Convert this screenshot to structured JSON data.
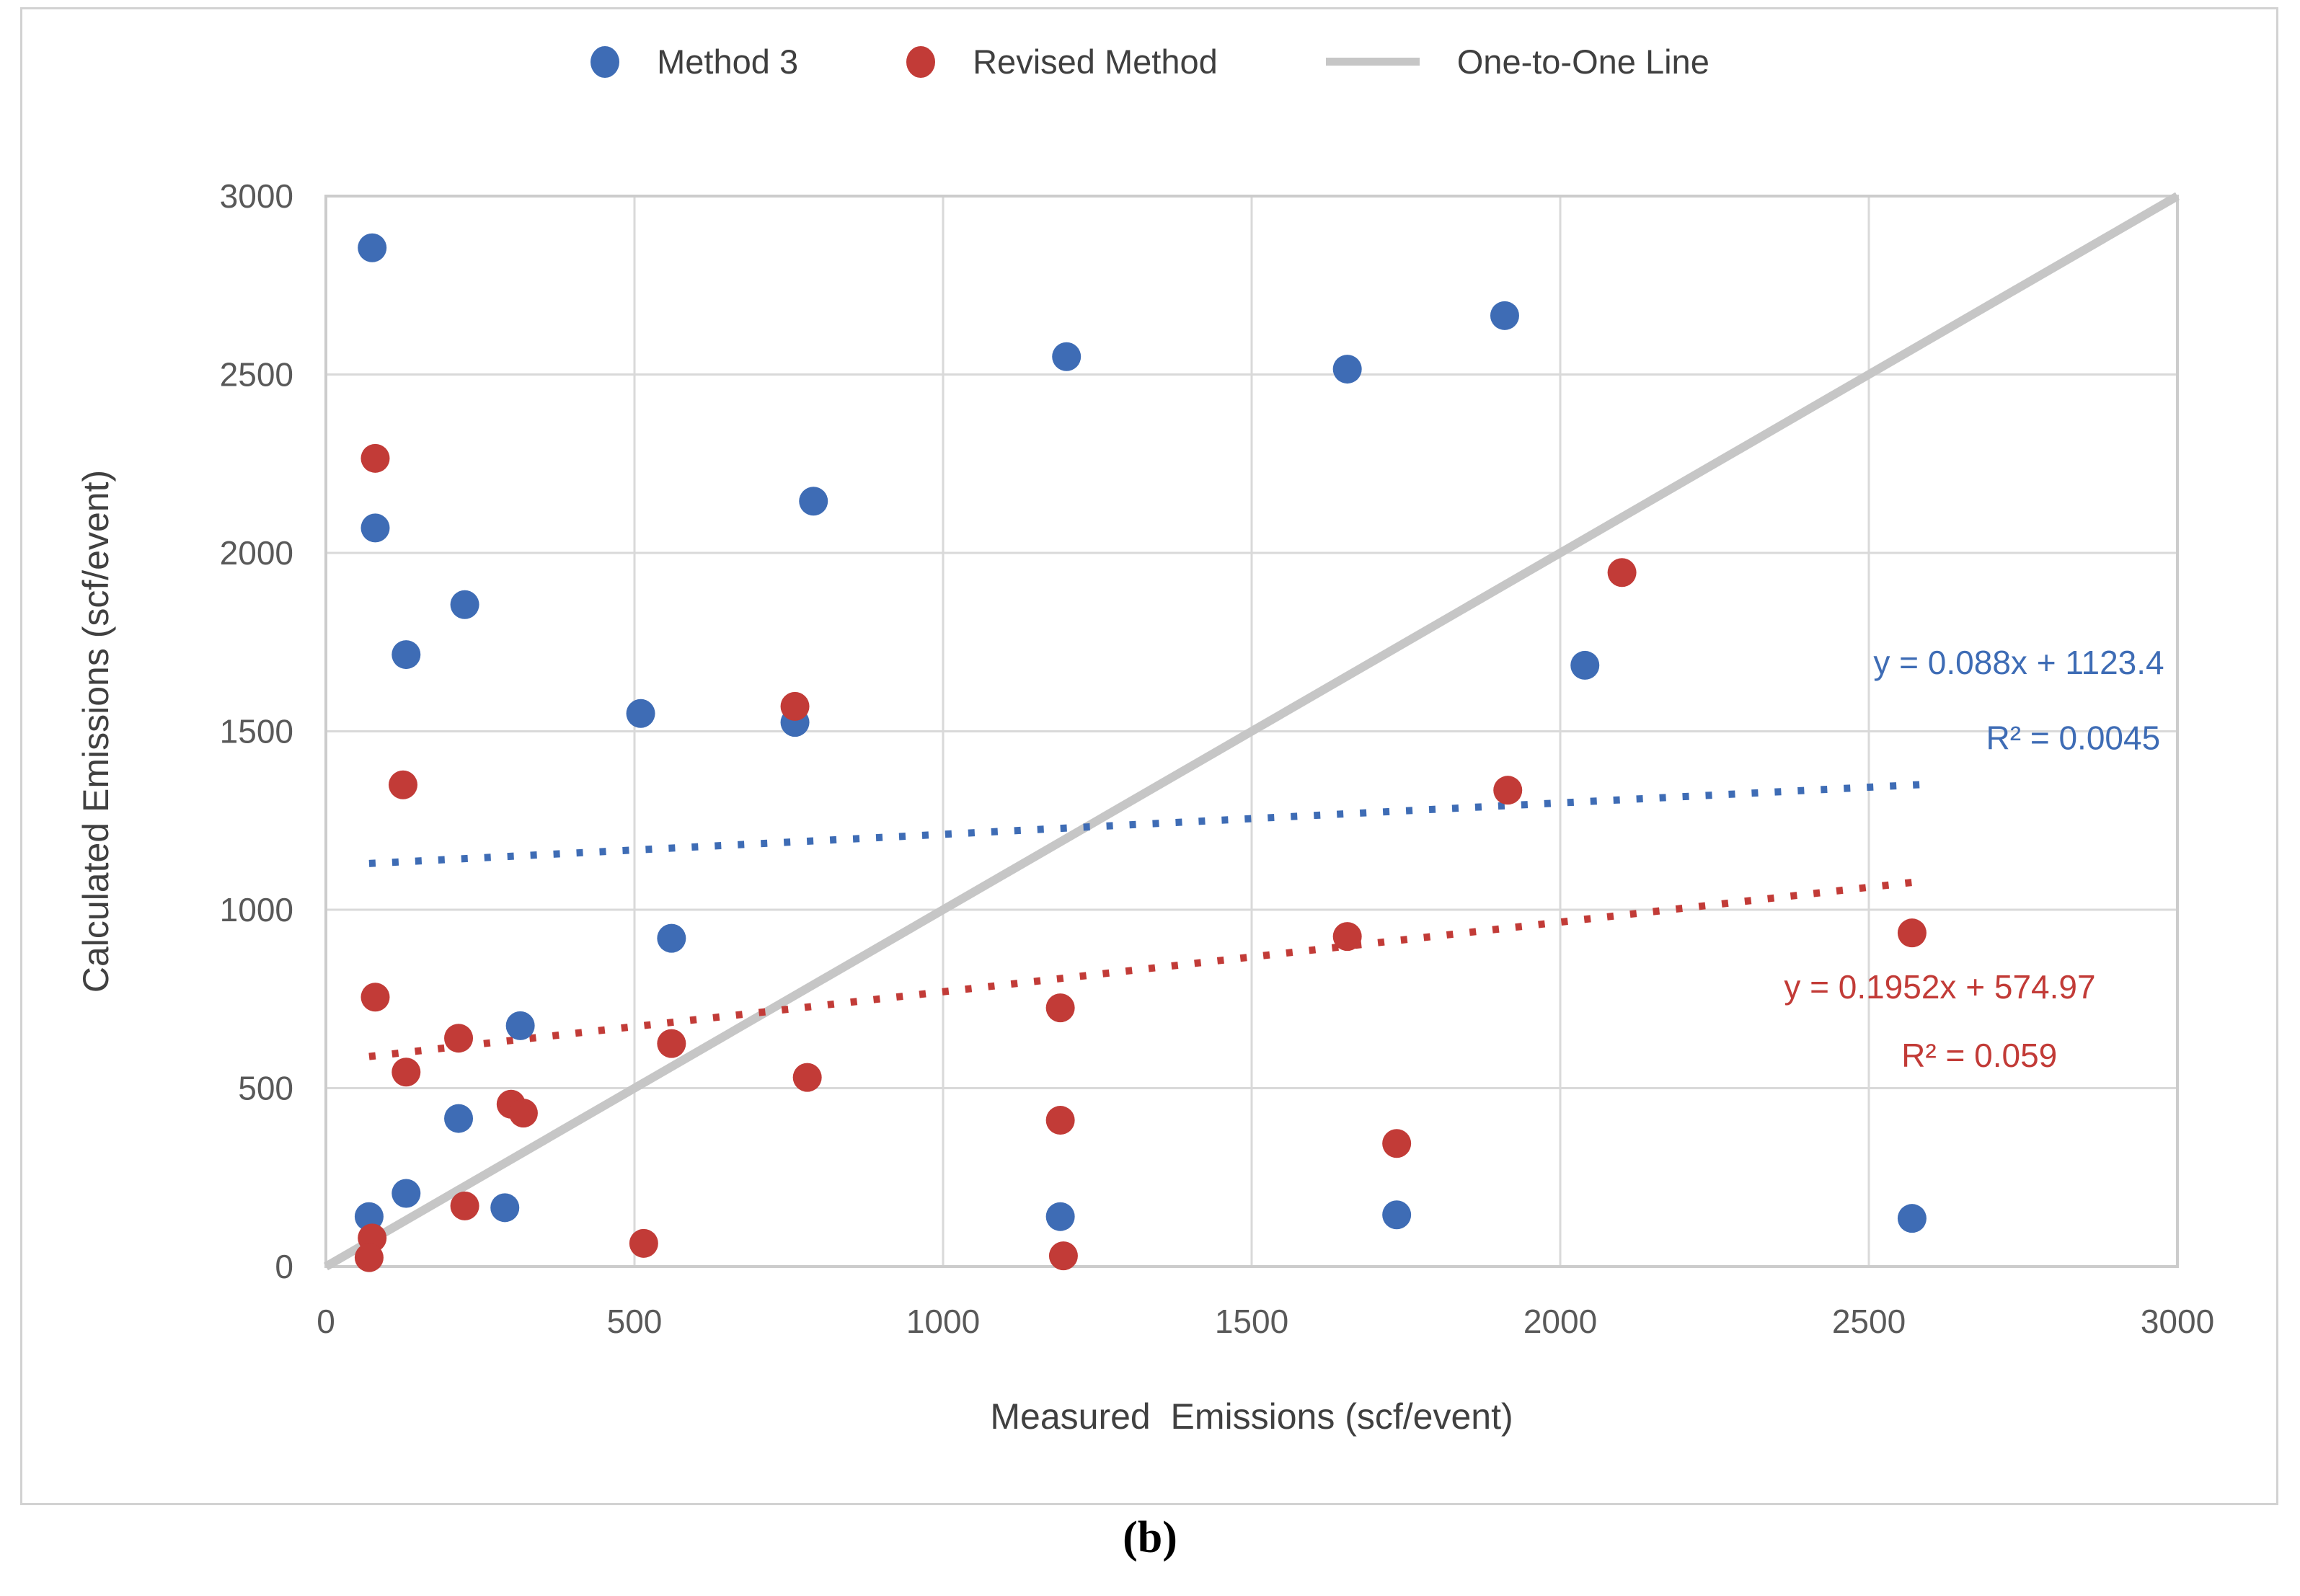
{
  "figure": {
    "caption": "(b)"
  },
  "legend": {
    "items": [
      {
        "label": "Method 3",
        "marker": "dot",
        "color": "#3e6cb5"
      },
      {
        "label": "Revised Method",
        "marker": "dot",
        "color": "#c23b37"
      },
      {
        "label": "One-to-One Line",
        "marker": "line",
        "color": "#c6c6c6"
      }
    ]
  },
  "chart_data": {
    "type": "scatter",
    "title": "",
    "xlabel": "Measured  Emissions (scf/event)",
    "ylabel": "Calculated Emissions (scf/event)",
    "xlim": [
      0,
      3000
    ],
    "ylim": [
      0,
      3000
    ],
    "xticks": [
      0,
      500,
      1000,
      1500,
      2000,
      2500,
      3000
    ],
    "yticks": [
      0,
      500,
      1000,
      1500,
      2000,
      2500,
      3000
    ],
    "grid": true,
    "legend_position": "top",
    "colors": {
      "gridline": "#d9d9d9",
      "plot_border": "#cccccc",
      "tick_text": "#595959",
      "axis_title_text": "#404040",
      "one_to_one": "#c6c6c6"
    },
    "series": [
      {
        "name": "Method 3",
        "color": "#3e6cb5",
        "points": [
          [
            75,
            2855
          ],
          [
            80,
            2070
          ],
          [
            225,
            1855
          ],
          [
            130,
            1715
          ],
          [
            510,
            1550
          ],
          [
            790,
            2145
          ],
          [
            760,
            1525
          ],
          [
            560,
            920
          ],
          [
            315,
            675
          ],
          [
            215,
            415
          ],
          [
            290,
            165
          ],
          [
            130,
            205
          ],
          [
            70,
            140
          ],
          [
            1200,
            2550
          ],
          [
            1655,
            2515
          ],
          [
            1910,
            2665
          ],
          [
            2040,
            1685
          ],
          [
            1190,
            140
          ],
          [
            1735,
            145
          ],
          [
            2570,
            135
          ]
        ]
      },
      {
        "name": "Revised Method",
        "color": "#c23b37",
        "points": [
          [
            80,
            2265
          ],
          [
            125,
            1350
          ],
          [
            80,
            755
          ],
          [
            215,
            640
          ],
          [
            130,
            545
          ],
          [
            300,
            455
          ],
          [
            320,
            430
          ],
          [
            225,
            170
          ],
          [
            75,
            80
          ],
          [
            70,
            25
          ],
          [
            515,
            65
          ],
          [
            560,
            625
          ],
          [
            760,
            1570
          ],
          [
            780,
            530
          ],
          [
            1190,
            725
          ],
          [
            1190,
            410
          ],
          [
            1195,
            30
          ],
          [
            1655,
            925
          ],
          [
            1735,
            345
          ],
          [
            1915,
            1335
          ],
          [
            2100,
            1945
          ],
          [
            2570,
            935
          ]
        ]
      }
    ],
    "one_to_one_line": {
      "name": "One-to-One Line",
      "from": [
        0,
        0
      ],
      "to": [
        3000,
        3000
      ]
    },
    "trendlines": [
      {
        "series": "Method 3",
        "color": "#3e6cb5",
        "slope": 0.088,
        "intercept": 1123.4,
        "equation": "y = 0.088x + 1123.4",
        "r2_label": "R² = 0.0045",
        "x_start": 70,
        "x_end": 2585
      },
      {
        "series": "Revised Method",
        "color": "#c23b37",
        "slope": 0.1952,
        "intercept": 574.97,
        "equation": "y = 0.1952x + 574.97",
        "r2_label": "R² = 0.059",
        "x_start": 70,
        "x_end": 2585
      }
    ],
    "annotations": [
      {
        "series": "Method 3",
        "color": "#3e6cb5",
        "line1": "y = 0.088x + 1123.4",
        "line1_at": [
          2743,
          1661
        ],
        "line2": "R² = 0.0045",
        "line2_at": [
          2831,
          1449
        ]
      },
      {
        "series": "Revised Method",
        "color": "#c23b37",
        "line1": "y = 0.1952x + 574.97",
        "line1_at": [
          2615,
          752
        ],
        "line2": "R² = 0.059",
        "line2_at": [
          2679,
          560
        ]
      }
    ]
  }
}
